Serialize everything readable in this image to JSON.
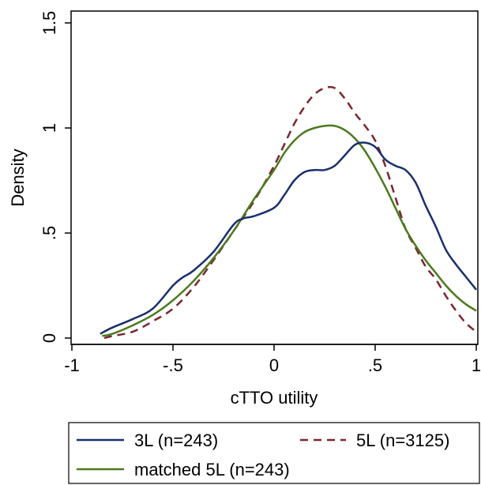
{
  "chart_data": {
    "type": "line",
    "title": "",
    "xlabel": "cTTO utility",
    "ylabel": "Density",
    "xlim": [
      -1,
      1
    ],
    "ylim": [
      0,
      1.5
    ],
    "xticks": [
      -1,
      -0.5,
      0,
      0.5,
      1
    ],
    "xtick_labels": [
      "-1",
      "-.5",
      "0",
      ".5",
      "1"
    ],
    "yticks": [
      0,
      0.5,
      1,
      1.5
    ],
    "ytick_labels": [
      "0",
      ".5",
      "1",
      "1.5"
    ],
    "grid": false,
    "legend_position": "bottom",
    "series": [
      {
        "name": "3L (n=243)",
        "color": "#1a2f6b",
        "dash": "solid",
        "x": [
          -0.86,
          -0.8,
          -0.7,
          -0.6,
          -0.5,
          -0.45,
          -0.4,
          -0.3,
          -0.2,
          -0.15,
          -0.1,
          0,
          0.05,
          0.1,
          0.15,
          0.2,
          0.25,
          0.3,
          0.35,
          0.4,
          0.45,
          0.5,
          0.55,
          0.6,
          0.65,
          0.7,
          0.75,
          0.8,
          0.85,
          0.9,
          0.95,
          1.0
        ],
        "y": [
          0.02,
          0.05,
          0.09,
          0.14,
          0.25,
          0.29,
          0.32,
          0.41,
          0.54,
          0.57,
          0.58,
          0.62,
          0.68,
          0.75,
          0.79,
          0.8,
          0.8,
          0.82,
          0.87,
          0.92,
          0.93,
          0.91,
          0.85,
          0.82,
          0.8,
          0.74,
          0.63,
          0.53,
          0.42,
          0.35,
          0.29,
          0.23
        ]
      },
      {
        "name": "5L (n=3125)",
        "color": "#7a2630",
        "dash": "dashed",
        "x": [
          -0.84,
          -0.8,
          -0.7,
          -0.6,
          -0.5,
          -0.4,
          -0.3,
          -0.2,
          -0.1,
          0,
          0.05,
          0.1,
          0.15,
          0.2,
          0.25,
          0.3,
          0.35,
          0.4,
          0.45,
          0.5,
          0.55,
          0.6,
          0.65,
          0.7,
          0.75,
          0.8,
          0.85,
          0.9,
          0.95,
          1.0
        ],
        "y": [
          0.0,
          0.01,
          0.03,
          0.08,
          0.14,
          0.24,
          0.37,
          0.51,
          0.65,
          0.82,
          0.92,
          1.02,
          1.1,
          1.16,
          1.19,
          1.19,
          1.14,
          1.07,
          1.01,
          0.94,
          0.82,
          0.67,
          0.52,
          0.43,
          0.34,
          0.28,
          0.2,
          0.13,
          0.07,
          0.03
        ]
      },
      {
        "name": "matched 5L (n=243)",
        "color": "#4a7a1e",
        "dash": "solid",
        "x": [
          -0.85,
          -0.8,
          -0.7,
          -0.6,
          -0.5,
          -0.4,
          -0.3,
          -0.2,
          -0.1,
          0,
          0.05,
          0.1,
          0.15,
          0.2,
          0.25,
          0.3,
          0.35,
          0.4,
          0.45,
          0.5,
          0.55,
          0.6,
          0.65,
          0.7,
          0.75,
          0.8,
          0.85,
          0.9,
          0.95,
          1.0
        ],
        "y": [
          0.01,
          0.02,
          0.06,
          0.11,
          0.18,
          0.27,
          0.38,
          0.51,
          0.66,
          0.8,
          0.88,
          0.94,
          0.98,
          1.0,
          1.01,
          1.01,
          0.99,
          0.95,
          0.89,
          0.81,
          0.72,
          0.62,
          0.52,
          0.44,
          0.37,
          0.31,
          0.25,
          0.2,
          0.16,
          0.13
        ]
      }
    ]
  }
}
